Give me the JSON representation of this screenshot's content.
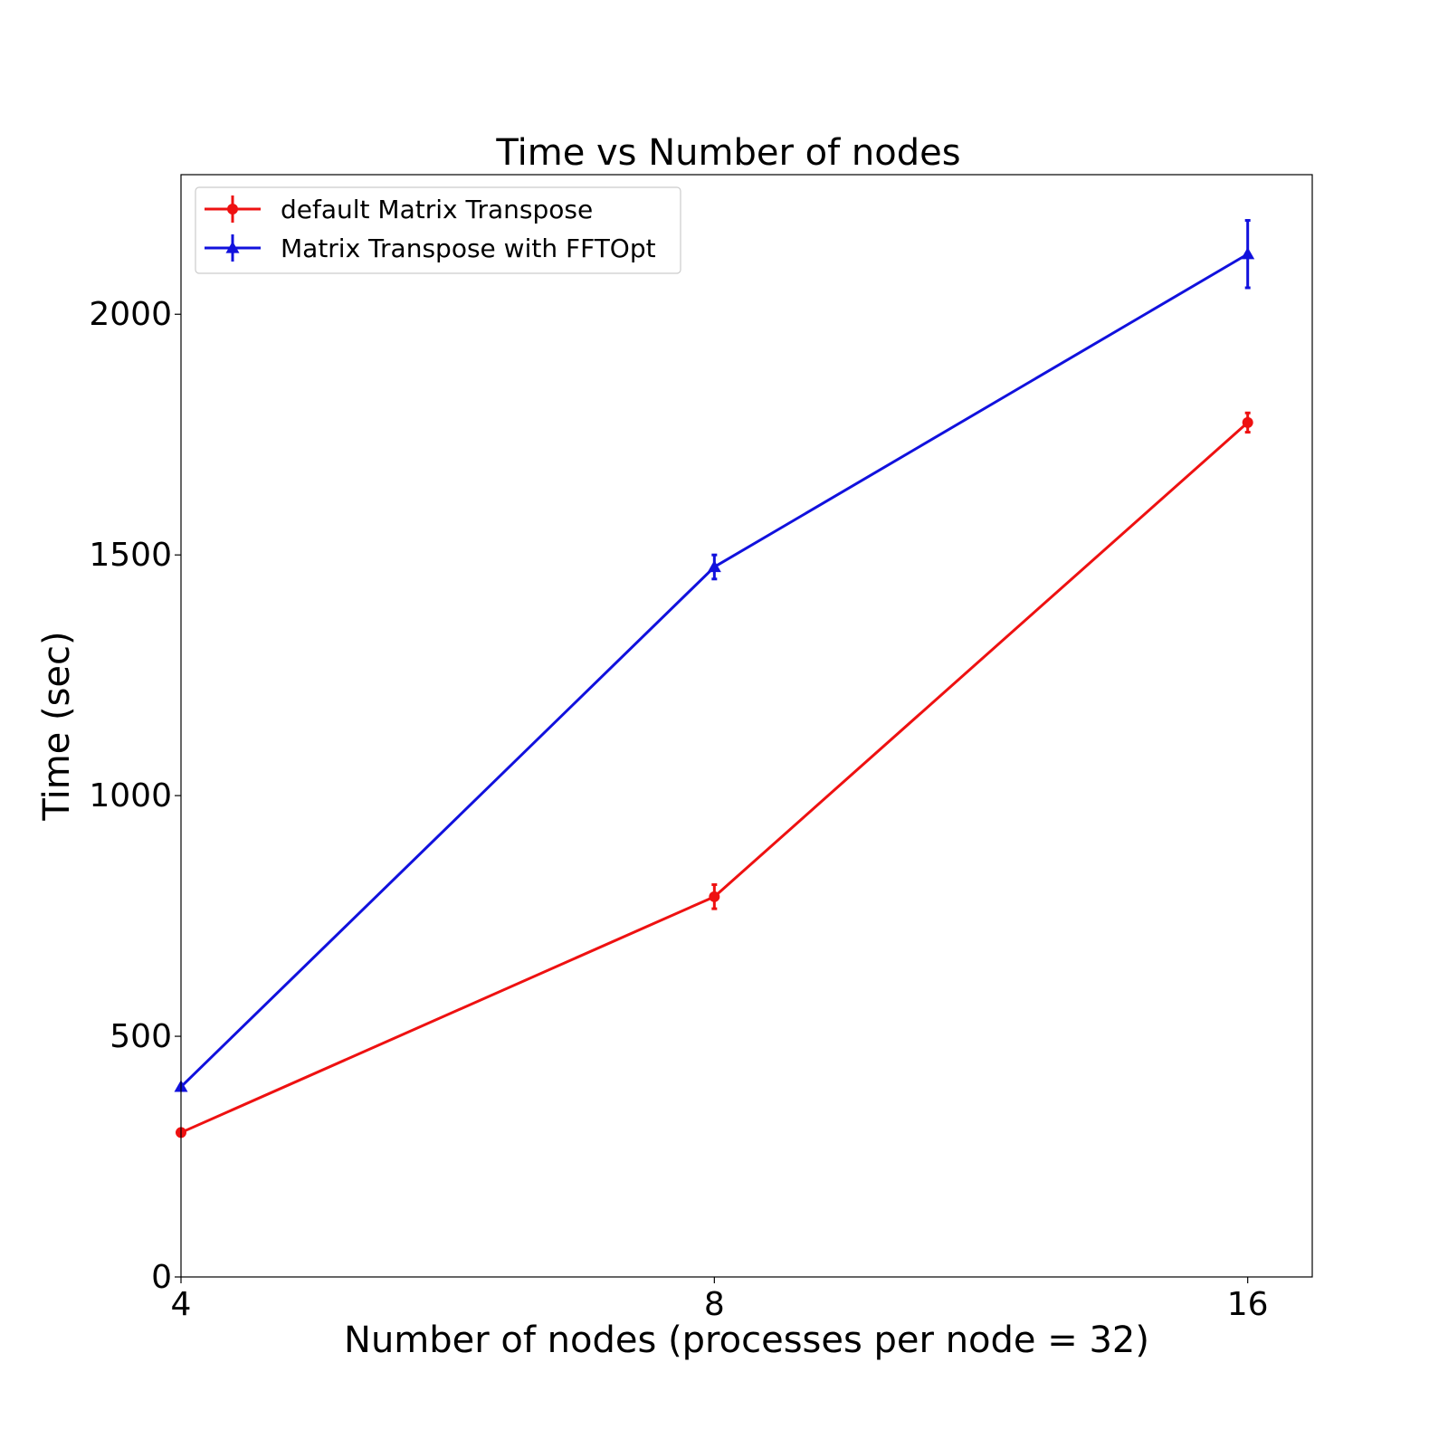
{
  "chart_data": {
    "type": "line",
    "title": "Time vs Number of nodes",
    "xlabel": "Number of nodes (processes per node = 32)",
    "ylabel": "Time (sec)",
    "x": [
      4,
      8,
      16
    ],
    "x_scale": "log2",
    "x_ticks": [
      "4",
      "8",
      "16"
    ],
    "xlim": [
      4,
      17.4
    ],
    "y_ticks": [
      "0",
      "500",
      "1000",
      "1500",
      "2000"
    ],
    "ylim": [
      0,
      2290
    ],
    "grid": false,
    "legend_position": "upper-left",
    "series": [
      {
        "name": "default Matrix Transpose",
        "values": [
          300,
          790,
          1775
        ],
        "errors": [
          0,
          25,
          20
        ],
        "color": "#ee1111",
        "marker": "circle"
      },
      {
        "name": "Matrix Transpose with FFTOpt",
        "values": [
          395,
          1475,
          2125
        ],
        "errors": [
          0,
          25,
          70
        ],
        "color": "#1111dd",
        "marker": "triangle"
      }
    ]
  }
}
